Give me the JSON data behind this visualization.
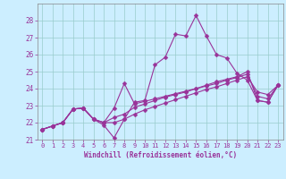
{
  "bg_color": "#cceeff",
  "line_color": "#993399",
  "xlim": [
    -0.5,
    23.5
  ],
  "ylim": [
    21,
    29
  ],
  "xticks": [
    0,
    1,
    2,
    3,
    4,
    5,
    6,
    7,
    8,
    9,
    10,
    11,
    12,
    13,
    14,
    15,
    16,
    17,
    18,
    19,
    20,
    21,
    22,
    23
  ],
  "yticks": [
    21,
    22,
    23,
    24,
    25,
    26,
    27,
    28
  ],
  "grid_color": "#99cccc",
  "xlabel": "Windchill (Refroidissement éolien,°C)",
  "line0": [
    21.6,
    21.8,
    22.0,
    22.8,
    22.85,
    22.2,
    21.85,
    21.1,
    22.2,
    23.2,
    23.3,
    25.4,
    25.85,
    27.2,
    27.1,
    28.3,
    27.1,
    26.0,
    25.8,
    24.9,
    24.5,
    23.3,
    23.2,
    24.2
  ],
  "line1": [
    21.6,
    21.8,
    22.0,
    22.8,
    22.85,
    22.2,
    22.0,
    22.85,
    24.3,
    23.1,
    23.25,
    23.4,
    23.55,
    23.7,
    23.85,
    24.0,
    24.2,
    24.4,
    24.55,
    24.7,
    25.0,
    23.3,
    23.2,
    24.2
  ],
  "line2": [
    21.6,
    21.8,
    22.0,
    22.8,
    22.85,
    22.2,
    22.0,
    22.3,
    22.5,
    22.9,
    23.1,
    23.3,
    23.5,
    23.65,
    23.8,
    24.0,
    24.15,
    24.3,
    24.5,
    24.65,
    24.85,
    23.55,
    23.4,
    24.2
  ],
  "line3": [
    21.6,
    21.8,
    22.0,
    22.8,
    22.85,
    22.2,
    22.0,
    22.0,
    22.2,
    22.5,
    22.75,
    22.95,
    23.15,
    23.35,
    23.55,
    23.75,
    23.95,
    24.1,
    24.3,
    24.5,
    24.7,
    23.8,
    23.65,
    24.2
  ],
  "markersize": 2.5,
  "linewidth": 0.8,
  "tick_fontsize": 5,
  "xlabel_fontsize": 5.5
}
